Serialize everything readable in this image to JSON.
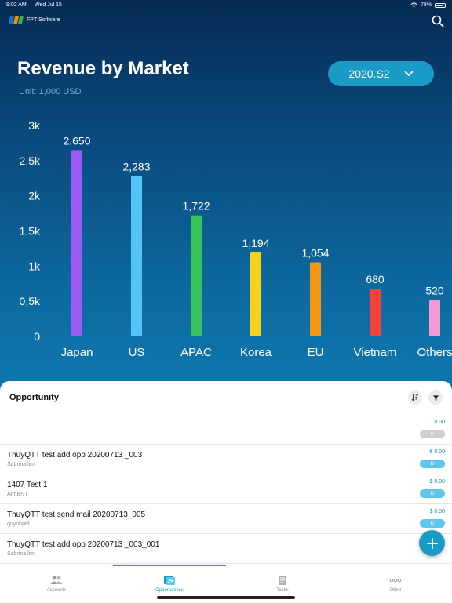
{
  "status_bar": {
    "time": "9:02 AM",
    "date": "Wed Jul 15",
    "battery": "78%",
    "battery_level": 0.78
  },
  "header": {
    "brand_name": "FPT Software",
    "logo_colors": [
      "#1f6fd0",
      "#f39200",
      "#38b449"
    ],
    "search_icon": "search-icon"
  },
  "hero": {
    "title": "Revenue by Market",
    "unit": "Unit: 1,000 USD",
    "period_label": "2020.S2",
    "period_icon": "chevron-down-icon"
  },
  "chart_data": {
    "type": "bar",
    "categories": [
      "Japan",
      "US",
      "APAC",
      "Korea",
      "EU",
      "Vietnam",
      "Others"
    ],
    "values": [
      2650,
      2283,
      1722,
      1194,
      1054,
      680,
      520
    ],
    "value_labels": [
      "2,650",
      "2,283",
      "1,722",
      "1,194",
      "1,054",
      "680",
      "520"
    ],
    "colors": [
      "#9b59f5",
      "#54c3f5",
      "#37c25b",
      "#f5d21b",
      "#f59516",
      "#f5413a",
      "#f29ad6"
    ],
    "yticks": [
      0,
      500,
      1000,
      1500,
      2000,
      2500,
      3000
    ],
    "ytick_labels": [
      "0",
      "0,5k",
      "1k",
      "1.5k",
      "2k",
      "2.5k",
      "3k"
    ],
    "ylim": [
      0,
      3000
    ],
    "title": "Revenue by Market",
    "xlabel": "",
    "ylabel": "",
    "grid": false
  },
  "opportunity": {
    "title": "Opportunity",
    "sort_icon": "sort-icon",
    "filter_icon": "filter-icon",
    "rows": [
      {
        "name": "",
        "owner": "",
        "amount": "0.00",
        "badge": "D",
        "badge_color": "#cfcfcf"
      },
      {
        "name": "ThuyQTT test add opp 20200713 _003",
        "owner": "Sabrina.lim",
        "amount": "€ 0.00",
        "badge": "D",
        "badge_color": "#5cc6ef"
      },
      {
        "name": "1407 Test 1",
        "owner": "AnhBNT",
        "amount": "$ 0.00",
        "badge": "D",
        "badge_color": "#5cc6ef"
      },
      {
        "name": "ThuyQTT test send mail 20200713_005",
        "owner": "quynhpt8",
        "amount": "$ 0.00",
        "badge": "D",
        "badge_color": "#5cc6ef"
      },
      {
        "name": "ThuyQTT test add opp 20200713 _003_001",
        "owner": "Sabrina.lim",
        "amount": "",
        "badge": "",
        "badge_color": "#5cc6ef"
      }
    ],
    "add_icon": "plus-icon"
  },
  "tabs": [
    {
      "label": "Accounts",
      "icon": "accounts-icon",
      "active": false
    },
    {
      "label": "Opportunities",
      "icon": "opportunities-icon",
      "active": true
    },
    {
      "label": "Tasks",
      "icon": "tasks-icon",
      "active": false
    },
    {
      "label": "Other",
      "icon": "more-icon",
      "active": false
    }
  ],
  "colors": {
    "accent": "#1a9bc7",
    "hero_top": "#062a52",
    "hero_bottom": "#0f78ae"
  }
}
